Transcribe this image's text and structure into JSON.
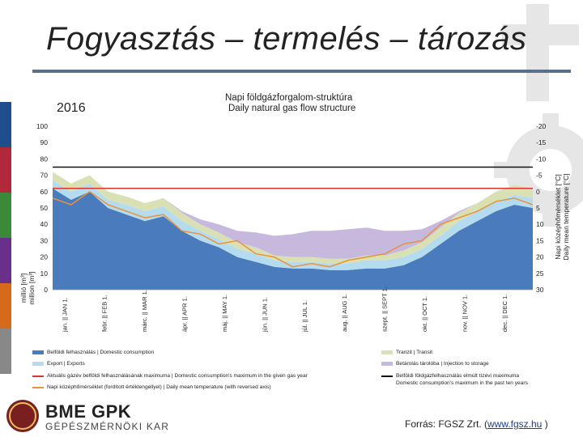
{
  "slide": {
    "title": "Fogyasztás – termelés – tározás",
    "source_prefix": "Forrás: FGSZ Zrt. (",
    "source_link": "www.fgsz.hu",
    "source_suffix": " )",
    "brand_line1": "BME GPK",
    "brand_line2": "GÉPÉSZMÉRNÖKI KAR",
    "stripe_colors": [
      "#1f4e8c",
      "#b0283a",
      "#3a8a3a",
      "#6a2f8a",
      "#d46a1a",
      "#888888"
    ]
  },
  "chart_data": {
    "type": "area",
    "year": "2016",
    "title": "Napi földgázforgalom-struktúra",
    "subtitle": "Daily natural gas flow structure",
    "ylabel_line1": "millió [m³]",
    "ylabel_line2": "million [m³]",
    "y2label_line1": "Napi középhőmérséklet [°C]",
    "y2label_line2": "Daily mean temperature [°C]",
    "ylim": [
      0,
      100
    ],
    "y_ticks": [
      "0",
      "10",
      "20",
      "30",
      "40",
      "50",
      "60",
      "70",
      "80",
      "90",
      "100"
    ],
    "y2_ticks": [
      "30",
      "25",
      "20",
      "15",
      "10",
      "5",
      "0",
      "-5",
      "-10",
      "-15",
      "-20"
    ],
    "y2_reversed": true,
    "y2lim": [
      30,
      -20
    ],
    "month_labels": [
      "jan. || JAN 1.",
      "febr. || FEB 1.",
      "márc. || MAR 1.",
      "ápr. || APR 1.",
      "máj. || MAY 1.",
      "jún. || JUN 1.",
      "júl. || JUL 1.",
      "aug. || AUG 1.",
      "szept. || SEPT 1.",
      "okt. || OCT 1.",
      "nov. || NOV 1.",
      "dec. || DEC 1."
    ],
    "colors": {
      "domestic": "#4a7bbd",
      "export": "#b5dcee",
      "transit": "#d9e0b4",
      "injection": "#c7b8dd",
      "year_max": "#d9352f",
      "temperature": "#e9923a",
      "ten_year_max": "#111111"
    },
    "reference_lines": {
      "year_max": 62,
      "ten_year_max": 75
    },
    "x": [
      0,
      14,
      28,
      42,
      56,
      70,
      84,
      98,
      112,
      126,
      140,
      154,
      168,
      182,
      196,
      210,
      224,
      238,
      252,
      266,
      280,
      294,
      308,
      322,
      336,
      350,
      364
    ],
    "series": [
      {
        "name": "Belföldi felhasználás | Domestic consumption",
        "values": [
          62,
          55,
          60,
          50,
          46,
          42,
          45,
          36,
          30,
          26,
          20,
          17,
          14,
          13,
          13,
          12,
          12,
          13,
          13,
          15,
          20,
          28,
          36,
          42,
          48,
          52,
          50
        ]
      },
      {
        "name": "Export | Exports",
        "values": [
          5,
          5,
          5,
          5,
          6,
          6,
          6,
          6,
          6,
          5,
          5,
          5,
          4,
          4,
          4,
          4,
          4,
          5,
          5,
          5,
          5,
          5,
          6,
          6,
          6,
          6,
          6
        ]
      },
      {
        "name": "Tranzit | Transit",
        "values": [
          5,
          5,
          5,
          5,
          5,
          5,
          5,
          5,
          4,
          4,
          4,
          4,
          3,
          3,
          3,
          3,
          3,
          3,
          3,
          4,
          4,
          5,
          5,
          5,
          6,
          6,
          6
        ]
      },
      {
        "name": "Betárolás tárolóba | Injection to storage",
        "values": [
          0,
          0,
          0,
          0,
          0,
          0,
          0,
          1,
          3,
          5,
          7,
          9,
          12,
          14,
          16,
          17,
          18,
          17,
          15,
          12,
          8,
          4,
          1,
          0,
          0,
          0,
          0
        ]
      }
    ],
    "temperature": {
      "name": "Napi középhőmérséklet (fordított értéktengellyel) | Daily mean temperature (with reversed axis)",
      "values": [
        2,
        4,
        0,
        4,
        6,
        8,
        7,
        12,
        13,
        16,
        15,
        19,
        20,
        23,
        22,
        23,
        21,
        20,
        19,
        16,
        15,
        10,
        8,
        6,
        3,
        2,
        4
      ]
    },
    "legend": [
      {
        "key": "domestic",
        "kind": "box",
        "label": "Belföldi felhasználás | Domestic consumption"
      },
      {
        "key": "transit",
        "kind": "box",
        "label": "Tranzit | Transit"
      },
      {
        "key": "export",
        "kind": "box",
        "label": "Export | Exports"
      },
      {
        "key": "injection",
        "kind": "box",
        "label": "Betárolás tárolóba | Injection to storage"
      },
      {
        "key": "year_max",
        "kind": "line",
        "label": "Aktuális gázév belföldi felhasználásának maximuma | Domestic consumption's maximum in the given gas year"
      },
      {
        "key": "ten_year_max",
        "kind": "line",
        "label": "Belföldi földgázfelhasználás elmúlt tízévi maximuma"
      },
      {
        "key": "temperature",
        "kind": "line",
        "label": "Napi középhőmérséklet (fordított értéktengellyel) | Daily mean temperature (with reversed axis)"
      }
    ],
    "legend_extra": "Domestic consumption's maximum in the past ten years"
  }
}
